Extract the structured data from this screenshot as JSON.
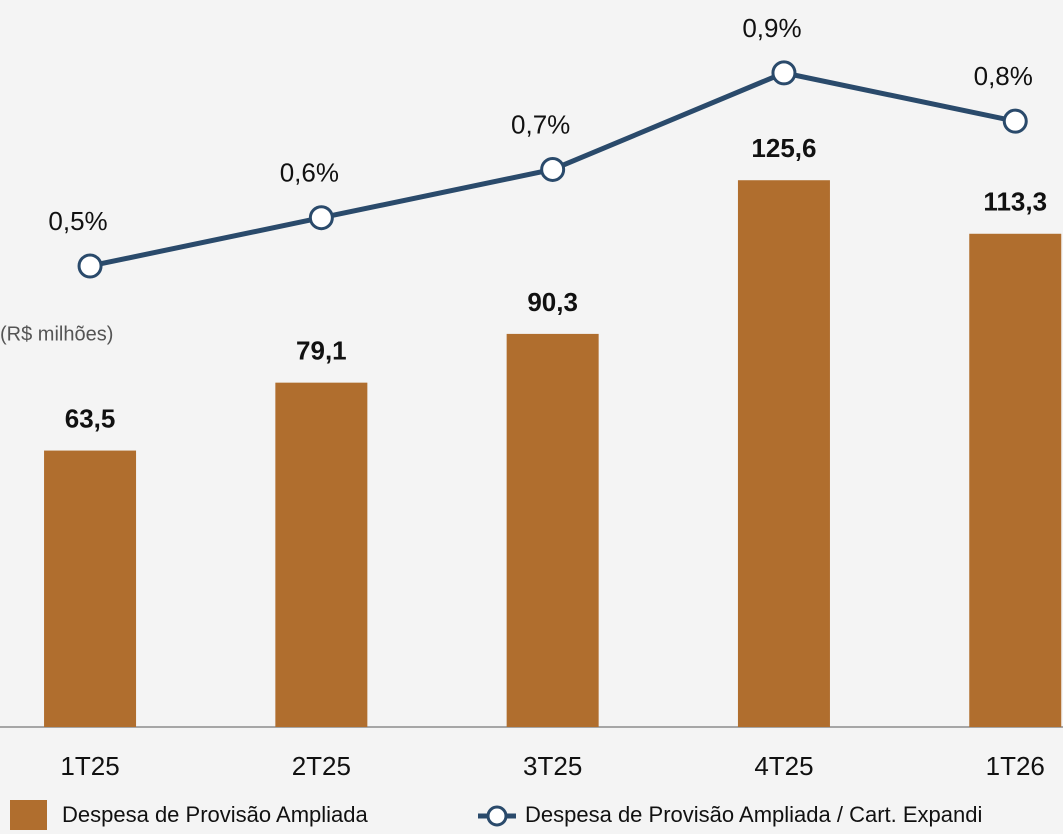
{
  "chart_data": {
    "type": "bar",
    "annotation": "(R$ milhões)",
    "categories": [
      "1T25",
      "2T25",
      "3T25",
      "4T25",
      "1T26"
    ],
    "series": [
      {
        "name": "Despesa de Provisão Ampliada",
        "type": "bar",
        "color": "#b06e2e",
        "values": [
          63.5,
          79.1,
          90.3,
          125.6,
          113.3
        ],
        "value_labels": [
          "63,5",
          "79,1",
          "90,3",
          "125,6",
          "113,3"
        ]
      },
      {
        "name": "Despesa de Provisão Ampliada / Cart. Expandi",
        "type": "line",
        "axis": "y2",
        "color": "#2a4a6b",
        "values": [
          0.5,
          0.6,
          0.7,
          0.9,
          0.8
        ],
        "value_labels": [
          "0,5%",
          "0,6%",
          "0,7%",
          "0,9%",
          "0,8%"
        ]
      }
    ],
    "ylim": [
      0,
      167
    ],
    "y2lim": [
      -0.455,
      1.051
    ]
  }
}
